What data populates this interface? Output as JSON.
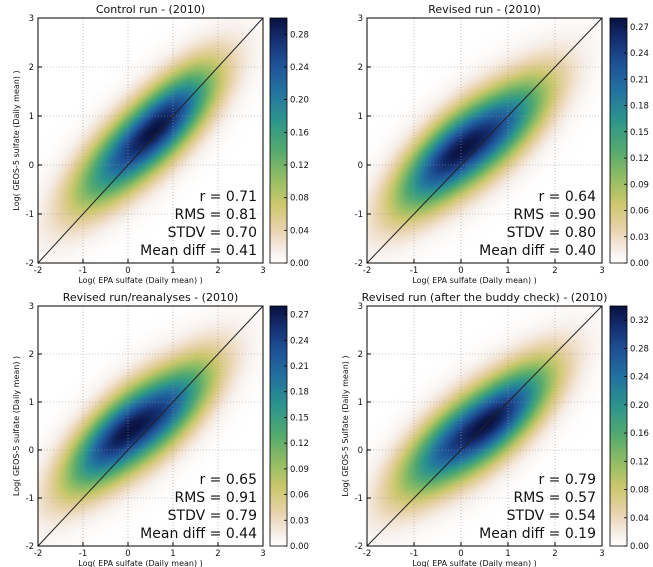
{
  "chart_data": [
    {
      "type": "heatmap",
      "title": "Control run - (2010)",
      "xlabel": "Log( EPA sulfate (Daily mean) )",
      "ylabel": "Log( GEOS-5 sulfate (Daily mean) )",
      "xlim": [
        -2,
        3
      ],
      "ylim": [
        -2,
        3
      ],
      "xticks": [
        "-2",
        "-1",
        "0",
        "1",
        "2",
        "3"
      ],
      "yticks": [
        "-2",
        "-1",
        "0",
        "1",
        "2",
        "3"
      ],
      "grid": true,
      "reference_line": "1:1",
      "colormap": "gist_earth_r",
      "colorbar_ticks": [
        "0.00",
        "0.04",
        "0.08",
        "0.12",
        "0.16",
        "0.20",
        "0.24",
        "0.28"
      ],
      "colorbar_max": 0.3,
      "density_centers": [
        [
          -0.25,
          0.1,
          0.6
        ],
        [
          0.85,
          0.9,
          1.0
        ]
      ],
      "stats": [
        "r = 0.71",
        "RMS = 0.81",
        "STDV = 0.70",
        "Mean diff = 0.41"
      ]
    },
    {
      "type": "heatmap",
      "title": "Revised run - (2010)",
      "xlabel": "Log( EPA sulfate (Daily mean) )",
      "ylabel": "",
      "xlim": [
        -2,
        3
      ],
      "ylim": [
        -2,
        3
      ],
      "xticks": [
        "-2",
        "-1",
        "0",
        "1",
        "2",
        "3"
      ],
      "yticks": [
        "-2",
        "-1",
        "0",
        "1",
        "2",
        "3"
      ],
      "grid": true,
      "reference_line": "1:1",
      "colormap": "gist_earth_r",
      "colorbar_ticks": [
        "0.00",
        "0.03",
        "0.06",
        "0.09",
        "0.12",
        "0.15",
        "0.18",
        "0.21",
        "0.24",
        "0.27"
      ],
      "colorbar_max": 0.28,
      "density_centers": [
        [
          -0.3,
          0.15,
          1.0
        ],
        [
          0.85,
          0.75,
          0.75
        ]
      ],
      "stats": [
        "r = 0.64",
        "RMS = 0.90",
        "STDV = 0.80",
        "Mean diff = 0.40"
      ]
    },
    {
      "type": "heatmap",
      "title": "Revised run/reanalyses - (2010)",
      "xlabel": "Log( EPA sulfate (Daily mean) )",
      "ylabel": "Log( GEOS-5 sulfate (Daily mean) )",
      "xlim": [
        -2,
        3
      ],
      "ylim": [
        -2,
        3
      ],
      "xticks": [
        "-2",
        "-1",
        "0",
        "1",
        "2",
        "3"
      ],
      "yticks": [
        "-2",
        "-1",
        "0",
        "1",
        "2",
        "3"
      ],
      "grid": true,
      "reference_line": "1:1",
      "colormap": "gist_earth_r",
      "colorbar_ticks": [
        "0.00",
        "0.03",
        "0.06",
        "0.09",
        "0.12",
        "0.15",
        "0.18",
        "0.21",
        "0.24",
        "0.27"
      ],
      "colorbar_max": 0.28,
      "density_centers": [
        [
          -0.3,
          0.25,
          1.0
        ],
        [
          0.85,
          0.8,
          0.8
        ]
      ],
      "stats": [
        "r = 0.65",
        "RMS = 0.91",
        "STDV = 0.79",
        "Mean diff = 0.44"
      ]
    },
    {
      "type": "heatmap",
      "title": "Revised run (after the buddy check) - (2010)",
      "xlabel": "Log( EPA sulfate (Daily mean) )",
      "ylabel": "Log( GEOS-5 Sulfate (Daily mean) )",
      "xlim": [
        -2,
        3
      ],
      "ylim": [
        -2,
        3
      ],
      "xticks": [
        "-2",
        "-1",
        "0",
        "1",
        "2",
        "3"
      ],
      "yticks": [
        "-2",
        "-1",
        "0",
        "1",
        "2",
        "3"
      ],
      "grid": true,
      "reference_line": "1:1",
      "colormap": "gist_earth_r",
      "colorbar_ticks": [
        "0.00",
        "0.04",
        "0.08",
        "0.12",
        "0.16",
        "0.20",
        "0.24",
        "0.28",
        "0.32"
      ],
      "colorbar_max": 0.34,
      "density_centers": [
        [
          -0.3,
          0.1,
          0.75
        ],
        [
          0.85,
          0.7,
          1.0
        ]
      ],
      "stats": [
        "r = 0.79",
        "RMS = 0.57",
        "STDV = 0.54",
        "Mean diff = 0.19"
      ]
    }
  ]
}
